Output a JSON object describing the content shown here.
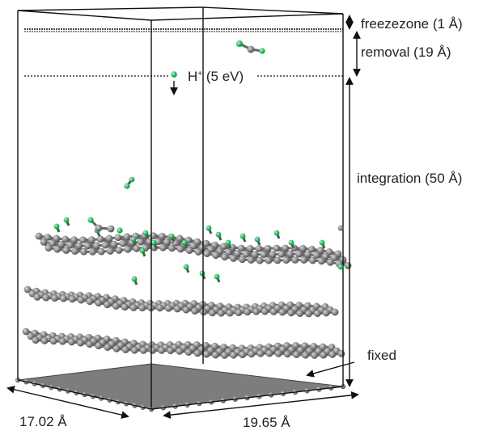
{
  "regions": {
    "freezezone": "freezezone (1 Å)",
    "removal": "removal (19 Å)",
    "integration": "integration (50 Å)",
    "fixed": "fixed"
  },
  "projectile": {
    "symbol": "H",
    "charge": "+",
    "energy": "(5 eV)"
  },
  "dimensions": {
    "depth": "17.02 Å",
    "width": "19.65 Å"
  },
  "colors": {
    "carbon": "#8a8a8c",
    "hydrogen": "#2fbf6b",
    "line": "#111111"
  }
}
